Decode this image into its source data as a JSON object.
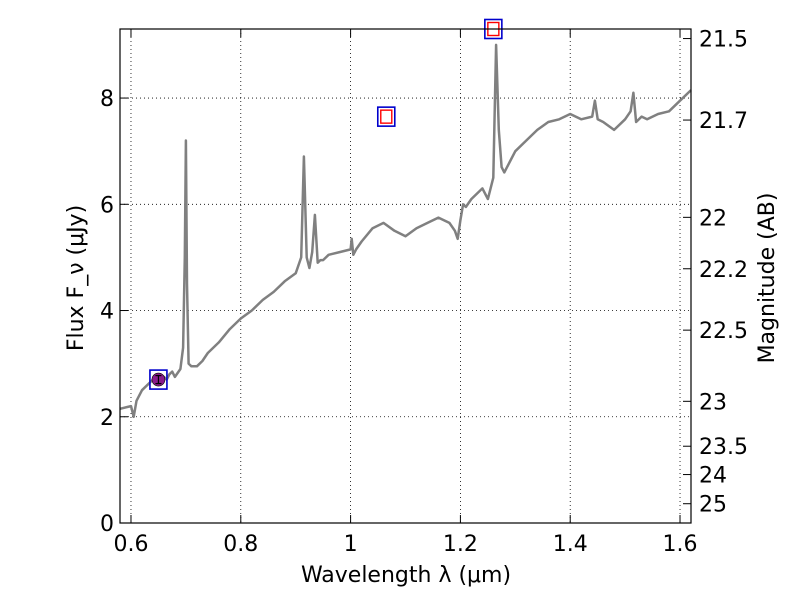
{
  "chart_data": {
    "type": "line",
    "xlabel": "Wavelength λ (μm)",
    "ylabel": "Flux F_ν (μJy)",
    "y2label": "Magnitude (AB)",
    "xlim": [
      0.58,
      1.62
    ],
    "ylim": [
      0,
      9.3
    ],
    "x_ticks": [
      0.6,
      0.8,
      1.0,
      1.2,
      1.4,
      1.6
    ],
    "x_tick_labels": [
      "0.6",
      "0.8",
      "1",
      "1.2",
      "1.4",
      "1.6"
    ],
    "y_ticks": [
      0,
      2,
      4,
      6,
      8
    ],
    "y_tick_labels": [
      "0",
      "2",
      "4",
      "6",
      "8"
    ],
    "mag_ticks": [
      21.5,
      21.7,
      22,
      22.2,
      22.5,
      23,
      23.5,
      24,
      25
    ],
    "mag_tick_labels": [
      "21.5",
      "21.7",
      "22",
      "22.2",
      "22.5",
      "23",
      "23.5",
      "24",
      "25"
    ],
    "grid": true,
    "series": [
      {
        "type": "line",
        "color": "#808080",
        "x": [
          0.58,
          0.6,
          0.605,
          0.61,
          0.62,
          0.64,
          0.66,
          0.665,
          0.67,
          0.675,
          0.68,
          0.69,
          0.695,
          0.698,
          0.7,
          0.702,
          0.705,
          0.71,
          0.72,
          0.73,
          0.74,
          0.76,
          0.78,
          0.8,
          0.82,
          0.84,
          0.86,
          0.88,
          0.9,
          0.91,
          0.915,
          0.92,
          0.925,
          0.93,
          0.935,
          0.94,
          0.945,
          0.95,
          0.96,
          0.98,
          1.0,
          1.002,
          1.005,
          1.01,
          1.02,
          1.04,
          1.06,
          1.08,
          1.1,
          1.12,
          1.14,
          1.16,
          1.18,
          1.19,
          1.195,
          1.2,
          1.205,
          1.21,
          1.22,
          1.24,
          1.25,
          1.26,
          1.265,
          1.27,
          1.275,
          1.28,
          1.3,
          1.32,
          1.34,
          1.36,
          1.38,
          1.4,
          1.42,
          1.44,
          1.445,
          1.45,
          1.46,
          1.48,
          1.5,
          1.51,
          1.515,
          1.52,
          1.53,
          1.54,
          1.56,
          1.58,
          1.6,
          1.62
        ],
        "y": [
          2.15,
          2.2,
          2.0,
          2.3,
          2.5,
          2.7,
          2.75,
          2.7,
          2.8,
          2.85,
          2.75,
          2.9,
          3.3,
          5.0,
          7.2,
          4.5,
          3.0,
          2.95,
          2.95,
          3.05,
          3.2,
          3.4,
          3.65,
          3.85,
          4.0,
          4.2,
          4.35,
          4.55,
          4.7,
          5.0,
          6.9,
          5.0,
          4.8,
          5.1,
          5.8,
          4.9,
          4.95,
          4.95,
          5.05,
          5.1,
          5.15,
          5.35,
          5.05,
          5.15,
          5.3,
          5.55,
          5.65,
          5.5,
          5.4,
          5.55,
          5.65,
          5.75,
          5.65,
          5.5,
          5.35,
          5.7,
          6.0,
          5.95,
          6.1,
          6.3,
          6.1,
          6.5,
          9.0,
          7.4,
          6.7,
          6.6,
          7.0,
          7.2,
          7.4,
          7.55,
          7.6,
          7.7,
          7.6,
          7.65,
          7.95,
          7.6,
          7.55,
          7.4,
          7.6,
          7.75,
          8.1,
          7.55,
          7.65,
          7.6,
          7.7,
          7.75,
          7.95,
          8.15
        ]
      },
      {
        "type": "photometry",
        "points": [
          {
            "x": 0.65,
            "y": 2.7,
            "marker": "filled-circle",
            "color": "#8b1a8b"
          },
          {
            "x": 1.065,
            "y": 7.65,
            "marker": "open-square",
            "color": "#ff0000"
          },
          {
            "x": 1.26,
            "y": 9.3,
            "marker": "open-square",
            "color": "#ff0000"
          }
        ]
      }
    ]
  }
}
